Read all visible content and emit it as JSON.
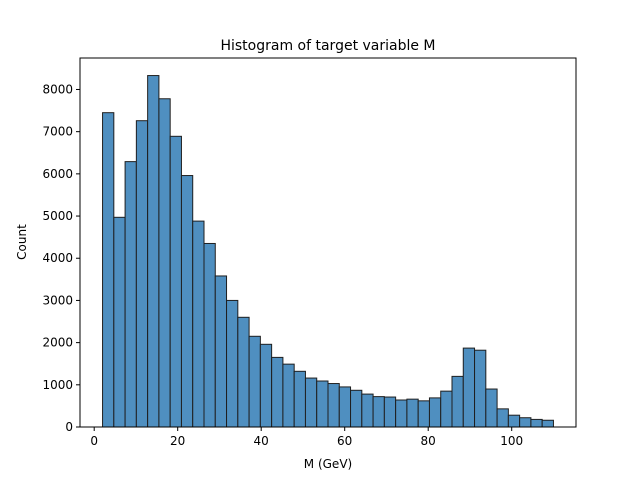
{
  "chart_data": {
    "type": "bar",
    "title": "Histogram of target variable M",
    "xlabel": "M (GeV)",
    "ylabel": "Count",
    "bin_width": 2.7,
    "bin_start": 2.0,
    "bin_end": 110.0,
    "values": [
      7450,
      4970,
      6290,
      7260,
      8330,
      7780,
      6890,
      5960,
      4880,
      4350,
      3580,
      3000,
      2600,
      2150,
      1960,
      1650,
      1490,
      1320,
      1160,
      1090,
      1030,
      950,
      870,
      780,
      720,
      710,
      640,
      660,
      620,
      690,
      850,
      1200,
      1870,
      1820,
      900,
      430,
      280,
      220,
      180,
      160
    ],
    "xlim": [
      -3.4,
      115.4
    ],
    "ylim": [
      0,
      8746
    ],
    "xticks": [
      0,
      20,
      40,
      60,
      80,
      100
    ],
    "yticks": [
      0,
      1000,
      2000,
      3000,
      4000,
      5000,
      6000,
      7000,
      8000
    ],
    "bar_color": "#4f8fc0",
    "edge_color": "#1f1f1f",
    "grid": false
  }
}
